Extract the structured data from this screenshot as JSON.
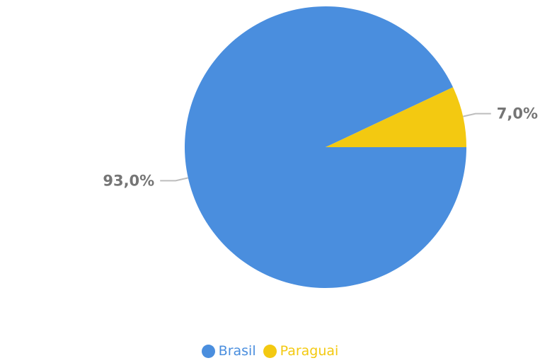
{
  "chart_data": {
    "type": "pie",
    "slices": [
      {
        "name": "Brasil",
        "value": 93.0,
        "label": "93,0%",
        "color": "#4a8ede"
      },
      {
        "name": "Paraguai",
        "value": 7.0,
        "label": "7,0%",
        "color": "#f3c911"
      }
    ],
    "legend_position": "bottom",
    "leader_line_color": "#bdbdbd"
  }
}
